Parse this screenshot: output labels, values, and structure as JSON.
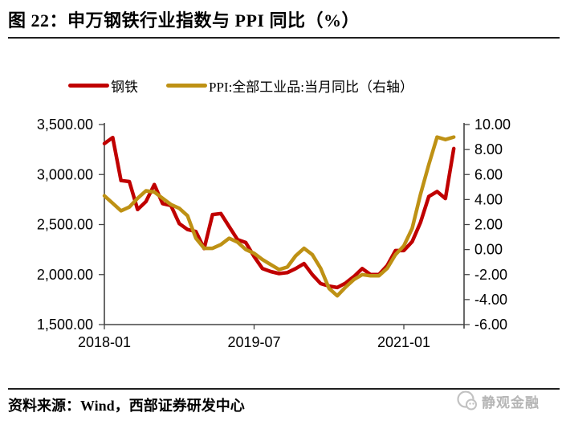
{
  "title": "图 22：申万钢铁行业指数与 PPI 同比（%）",
  "legend": [
    {
      "label": "钢铁",
      "color": "#C00000"
    },
    {
      "label": "PPI:全部工业品:当月同比（右轴）",
      "color": "#BE9114"
    }
  ],
  "footer": {
    "source_label": "资料来源：Wind，西部证券研发中心"
  },
  "watermark": {
    "text": "静观金融"
  },
  "colors": {
    "steel_line": "#C00000",
    "ppi_line": "#BE9114",
    "axis": "#444444",
    "watermark_gray": "#b5b5b5"
  },
  "chart_data": {
    "type": "line",
    "title": "申万钢铁行业指数与 PPI 同比（%）",
    "x_months": [
      "2018-01",
      "2018-02",
      "2018-03",
      "2018-04",
      "2018-05",
      "2018-06",
      "2018-07",
      "2018-08",
      "2018-09",
      "2018-10",
      "2018-11",
      "2018-12",
      "2019-01",
      "2019-02",
      "2019-03",
      "2019-04",
      "2019-05",
      "2019-06",
      "2019-07",
      "2019-08",
      "2019-09",
      "2019-10",
      "2019-11",
      "2019-12",
      "2020-01",
      "2020-02",
      "2020-03",
      "2020-04",
      "2020-05",
      "2020-06",
      "2020-07",
      "2020-08",
      "2020-09",
      "2020-10",
      "2020-11",
      "2020-12",
      "2021-01",
      "2021-02",
      "2021-03",
      "2021-04",
      "2021-05",
      "2021-06",
      "2021-07"
    ],
    "series": [
      {
        "name": "钢铁",
        "axis": "left",
        "color": "#C00000",
        "values": [
          3310,
          3370,
          2940,
          2930,
          2650,
          2730,
          2900,
          2710,
          2690,
          2510,
          2450,
          2430,
          2260,
          2600,
          2610,
          2480,
          2350,
          2320,
          2180,
          2060,
          2030,
          2010,
          2020,
          2060,
          2110,
          2000,
          1910,
          1885,
          1870,
          1915,
          1980,
          2060,
          2000,
          2000,
          2090,
          2240,
          2240,
          2330,
          2520,
          2780,
          2830,
          2760,
          3260
        ]
      },
      {
        "name": "PPI:全部工业品:当月同比（右轴）",
        "axis": "right",
        "color": "#BE9114",
        "values": [
          4.3,
          3.7,
          3.1,
          3.4,
          4.1,
          4.7,
          4.6,
          4.1,
          3.6,
          3.3,
          2.7,
          0.9,
          0.1,
          0.1,
          0.4,
          0.9,
          0.6,
          0.0,
          -0.3,
          -0.8,
          -1.2,
          -1.6,
          -1.4,
          -0.5,
          0.1,
          -0.4,
          -1.5,
          -3.1,
          -3.7,
          -3.0,
          -2.4,
          -2.0,
          -2.1,
          -2.1,
          -1.5,
          -0.4,
          0.3,
          1.7,
          4.4,
          6.8,
          9.0,
          8.8,
          9.0
        ]
      }
    ],
    "left_axis": {
      "labels": [
        "3,500.00",
        "3,000.00",
        "2,500.00",
        "2,000.00",
        "1,500.00"
      ],
      "values": [
        3500,
        3000,
        2500,
        2000,
        1500
      ],
      "min": 1500,
      "max": 3500
    },
    "right_axis": {
      "labels": [
        "10.00",
        "8.00",
        "6.00",
        "4.00",
        "2.00",
        "0.00",
        "-2.00",
        "-4.00",
        "-6.00"
      ],
      "values": [
        10,
        8,
        6,
        4,
        2,
        0,
        -2,
        -4,
        -6
      ],
      "min": -6,
      "max": 10
    },
    "x_axis": {
      "tick_labels": [
        "2018-01",
        "2019-07",
        "2021-01"
      ],
      "tick_month_indices": [
        0,
        18,
        36
      ]
    },
    "grid": false,
    "legend_position": "top"
  }
}
